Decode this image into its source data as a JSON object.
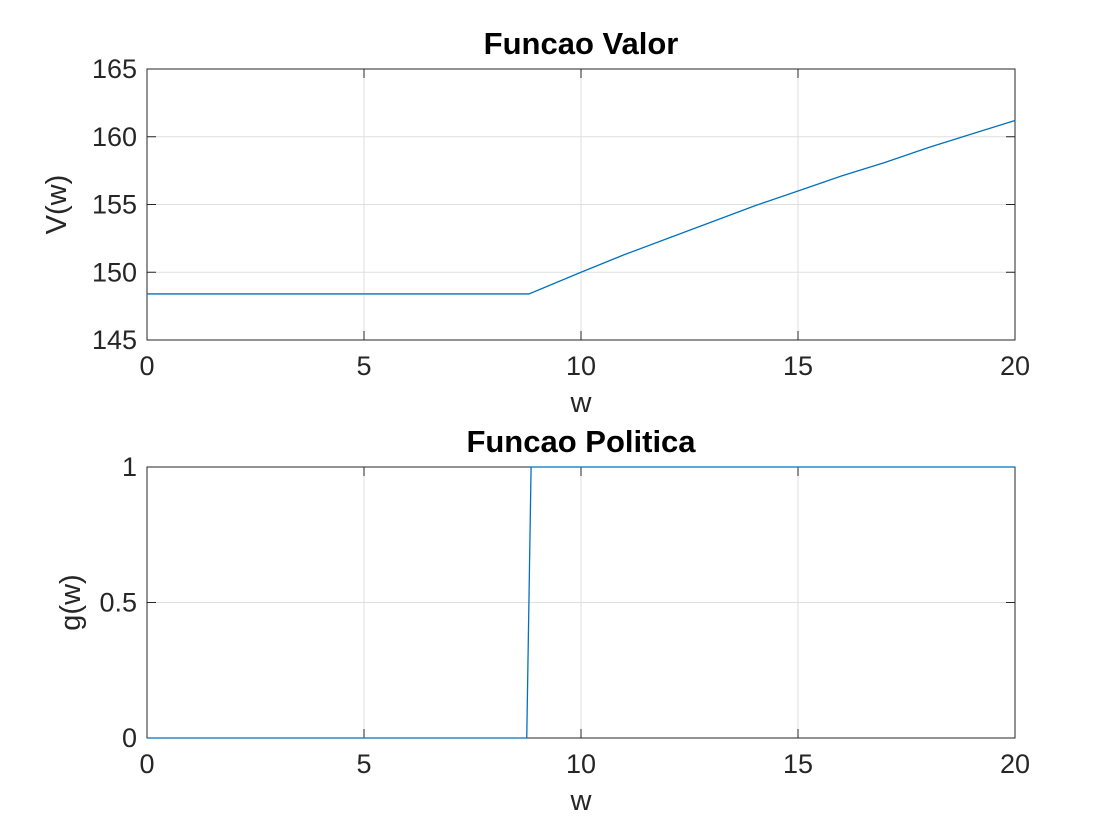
{
  "chart_data": [
    {
      "type": "line",
      "title": "Funcao Valor",
      "xlabel": "w",
      "ylabel": "V(w)",
      "xlim": [
        0,
        20
      ],
      "ylim": [
        145,
        165
      ],
      "xticks": [
        0,
        5,
        10,
        15,
        20
      ],
      "yticks": [
        145,
        150,
        155,
        160,
        165
      ],
      "grid": true,
      "series": [
        {
          "color": "#0072bd",
          "x": [
            0,
            2,
            4,
            6,
            8,
            8.8,
            10,
            11,
            12,
            13,
            14,
            15,
            16,
            17,
            18,
            19,
            20
          ],
          "y": [
            148.4,
            148.4,
            148.4,
            148.4,
            148.4,
            148.4,
            150.0,
            151.3,
            152.5,
            153.7,
            154.9,
            156.0,
            157.1,
            158.1,
            159.2,
            160.2,
            161.2
          ]
        }
      ]
    },
    {
      "type": "line",
      "title": "Funcao Politica",
      "xlabel": "w",
      "ylabel": "g(w)",
      "xlim": [
        0,
        20
      ],
      "ylim": [
        0,
        1
      ],
      "xticks": [
        0,
        5,
        10,
        15,
        20
      ],
      "yticks": [
        0,
        0.5,
        1
      ],
      "grid": true,
      "series": [
        {
          "color": "#0072bd",
          "x": [
            0,
            8.75,
            8.85,
            20
          ],
          "y": [
            0,
            0,
            1,
            1
          ]
        }
      ]
    }
  ]
}
